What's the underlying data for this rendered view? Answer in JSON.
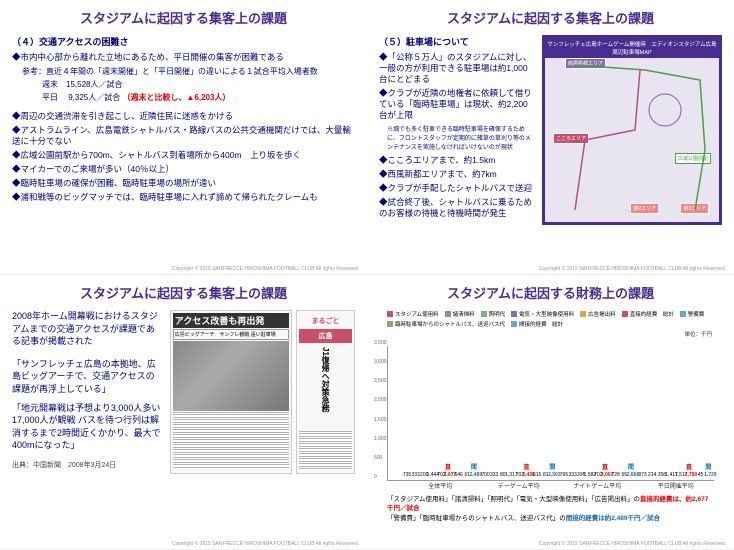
{
  "t": "スタジアムに起因する集客上の課題",
  "tf": "スタジアムに起因する財務上の課題",
  "cp": "Copyright © 2015 SANFRECCE HIROSHIMA FOOTBALL CLUB  All rights Reserved.",
  "p1": {
    "sub": "（４）交通アクセスの困難さ",
    "b1": "◆市内中心部から離れた立地にあるため、平日開催の集客が困難である",
    "r1": "参考：直近４年間の「週末開催」と「平日開催」の違いによる１試合平均入場者数",
    "r2": "週末　15,528人／試合",
    "r3": "平日　 9,325人／試合",
    "r3b": "（週末と比較し、▲6,203人）",
    "b2": "◆周辺の交通渋滞を引き起こし、近隣住民に迷惑をかける",
    "b3": "◆アストラムライン、広島電鉄シャトルバス・路線バスの公共交通機関だけでは、大量輸送に十分でない",
    "b4": "◆広域公園前駅から700m、シャトルバス到着場所から400m　上り坂を歩く",
    "b5": "◆マイカーでのご来場が多い（40％以上）",
    "b6": "◆臨時駐車場の確保が困難、臨時駐車場の場所が遠い",
    "b7": "◆浦和戦等のビッグマッチでは、臨時駐車場に入れず諦めて帰られたクレームも"
  },
  "p2": {
    "sub": "（５）駐車場について",
    "b1": "◆「公称５万人」のスタジアムに対し、一般の方が利用できる駐車場は約1,000台にとどまる",
    "b2": "◆クラブが近隣の地権者に依頼して借りている「臨時駐車場」は現状、約2,200台が上限",
    "s1": "※畑でも多く駐車できる臨時駐車場を確保するために、フロントスタッフが定期的に雑草の草刈り等のメンテナンスを実施しなければいけないのが現状",
    "b3": "◆こころエリアまで、約1.5km",
    "b4": "◆西風新都エリアまで、約7km",
    "b5": "◆クラブが手配したシャトルバスで送迎",
    "b6": "◆試合終了後、シャトルバスに乗るためのお客様の待機と待機時間が発生",
    "map": "サンフレッチェ広島ホームゲーム開催時　エディオンスタジアム広島周辺駐車場MAP",
    "m1": "西風新都エリア",
    "m2": "こころエリア",
    "m3": "第1駐車場",
    "m4": "第6駐車場",
    "m5": "広域公園前駅",
    "m6": "第3エリア",
    "m7": "第2エリア"
  },
  "p3": {
    "intro": "2008年ホーム開幕戦におけるスタジアムまでの交通アクセスが課題である記事が掲載された",
    "q1": "「サンフレッチェ広島の本拠地、広島ビッグアーチで、交通アクセスの課題が再浮上している」",
    "q2": "「地元開幕戦は予想より3,000人多い17,000人が観戦 バスを待つ行列は解消するまで2時間近くかかり、最大で400mになった」",
    "src": "出典：中国新聞　2008年3月24日",
    "ah": "アクセス改善も再出発",
    "as": "広島ビッグアーチ　サンフレ観戦 遠い駐車場",
    "ar": "まるごと",
    "ar2": "広島",
    "aj": "J1復帰へ対策急務"
  },
  "p4": {
    "lg": [
      "スタジアム使用料",
      "諸清掃料",
      "照明代",
      "電気・大型映像使用料",
      "広告掲出料",
      "直接的経費　総計",
      "警備費",
      "臨時駐車場からのシャトルバス、送迎バス代",
      "間接的経費　総計"
    ],
    "lc": [
      "#c94f6b",
      "#7a8fb8",
      "#7fb37f",
      "#8a6fb0",
      "#d4a84a",
      "#c94f6b",
      "#6aa8c4",
      "#8fa86f",
      "#6aa8c4"
    ],
    "unit": "単位：千円",
    "cats": [
      "全体平均",
      "デーゲーム平均",
      "ナイトゲーム平均",
      "平日開催平均"
    ],
    "ylim": 3500,
    "yticks": [
      0,
      500,
      1000,
      1500,
      2000,
      2500,
      3000,
      3500
    ],
    "dl": "直",
    "il": "間",
    "groups": [
      {
        "d": 2677,
        "i": 2489,
        "ds": [
          735,
          333,
          200,
          1444,
          702
        ],
        "is": [
          646,
          61
        ]
      },
      {
        "d": 2436,
        "i": 2503,
        "ds": [
          700,
          333,
          80,
          1317,
          702
        ],
        "is": [
          616,
          81
        ]
      },
      {
        "d": 3007,
        "i": 2666,
        "ds": [
          795,
          333,
          395,
          1582,
          702
        ],
        "is": [
          728,
          55
        ]
      },
      {
        "d": 2750,
        "i": 1729,
        "ds": [
          873,
          214,
          358,
          1417,
          1517
        ],
        "is": [
          45
        ]
      }
    ],
    "n1": "「スタジアム使用料」「諸清掃料」「照明代」「電気・大型映像使用料」「広告掲出料」の",
    "n1b": "直接的経費は、約2,677千円／試合",
    "n2": "「警備費」「臨時駐車場からのシャトルバス、送迎バス代」の",
    "n2b": "間接的経費は約2,489千円／試合"
  }
}
